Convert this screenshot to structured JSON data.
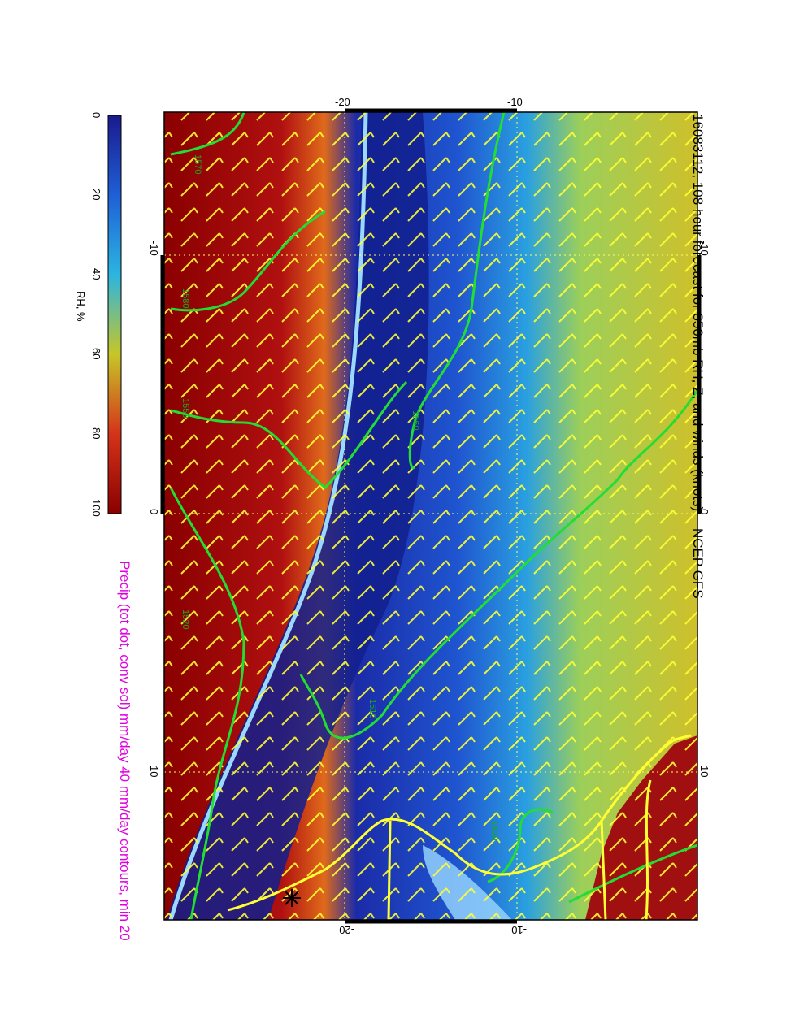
{
  "title": "16083112, 108 hour forecast for 850mb RH, Z, and winds (knots) -- NCEP GFS",
  "precip_note": "Precip (tot dot, conv sol) mm/day 40 mm/day contours, min 20",
  "colorbar": {
    "label": "RH, %",
    "ticks": [
      "0",
      "20",
      "40",
      "60",
      "80",
      "100"
    ],
    "colors": [
      "#1a1a8c",
      "#1f5fd6",
      "#2bb5e0",
      "#c7c628",
      "#d4331a",
      "#8a0000"
    ]
  },
  "map_axis": {
    "top_ticks": [
      "-20",
      "-10"
    ],
    "bottom_ticks": [
      "-20",
      "-10"
    ],
    "left_ticks": [
      "-10",
      "0",
      "10"
    ],
    "right_ticks": [
      "-10",
      "0",
      "10"
    ]
  },
  "contour_labels": [
    "1570",
    "1580",
    "1550",
    "1560",
    "1520",
    "1510",
    "1520"
  ],
  "colors": {
    "height_contours": "#22dd33",
    "wind_barbs": "#ffff33",
    "coastline": "#ffff33",
    "precip": "#e000e0"
  }
}
